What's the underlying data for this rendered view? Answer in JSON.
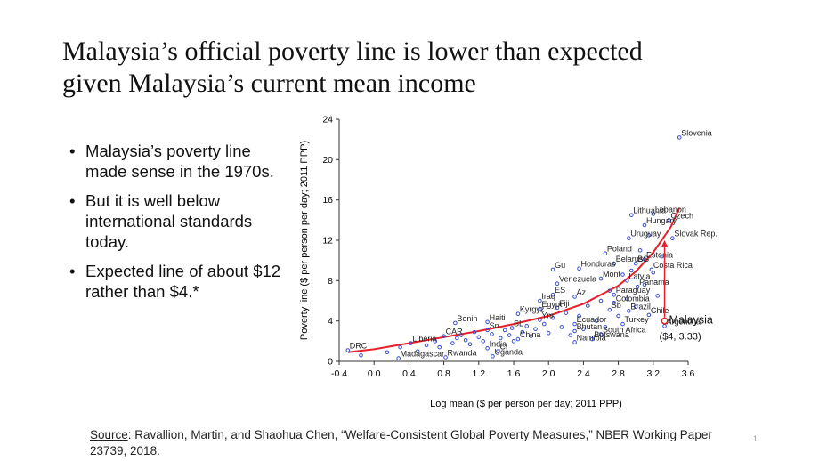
{
  "slide": {
    "title_line1": "Malaysia’s official poverty line is lower than expected",
    "title_line2": "given Malaysia’s current mean income",
    "bullets": [
      "Malaysia’s poverty line made sense in the 1970s.",
      "But it is well below international standards today.",
      "Expected line of about $12 rather than $4.*"
    ],
    "source_label": "Source",
    "source_text": ": Ravallion, Martin, and Shaohua Chen, “Welfare-Consistent Global Poverty Measures,” NBER Working Paper 23739, 2018.",
    "page_number": "1"
  },
  "chart_data": {
    "type": "scatter",
    "xlabel": "Log mean ($ per person per day; 2011 PPP)",
    "ylabel": "Poverty line ($ per person per day; 2011 PPP)",
    "xlim": [
      -0.4,
      3.6
    ],
    "ylim": [
      0,
      24
    ],
    "xticks": [
      -0.4,
      0.0,
      0.4,
      0.8,
      1.2,
      1.6,
      2.0,
      2.4,
      2.8,
      3.2,
      3.6
    ],
    "xtick_labels": [
      "-0.4",
      "0.0",
      "0.4",
      "0.8",
      "1.2",
      "1.6",
      "2.0",
      "2.4",
      "2.8",
      "3.2",
      "3.6"
    ],
    "yticks": [
      0,
      4,
      8,
      12,
      16,
      20,
      24
    ],
    "ytick_labels": [
      "0",
      "4",
      "8",
      "12",
      "16",
      "20",
      "24"
    ],
    "grid": false,
    "colors": {
      "points": "#3a4fcf",
      "fit": "#e8202a",
      "malaysia": "#e8202a"
    },
    "labelled_points": [
      {
        "name": "DRC",
        "x": -0.3,
        "y": 1.1
      },
      {
        "name": "Madagascar",
        "x": 0.28,
        "y": 0.3
      },
      {
        "name": "Rwanda",
        "x": 0.82,
        "y": 0.4
      },
      {
        "name": "Liberia",
        "x": 0.42,
        "y": 1.8
      },
      {
        "name": "CAR",
        "x": 0.8,
        "y": 2.5
      },
      {
        "name": "Benin",
        "x": 0.93,
        "y": 3.8
      },
      {
        "name": "Haiti",
        "x": 1.3,
        "y": 3.9
      },
      {
        "name": "Sn",
        "x": 1.3,
        "y": 3.1
      },
      {
        "name": "SL",
        "x": 1.58,
        "y": 3.3
      },
      {
        "name": "Uganda",
        "x": 1.36,
        "y": 0.5
      },
      {
        "name": "India",
        "x": 1.3,
        "y": 1.3
      },
      {
        "name": "CI",
        "x": 1.42,
        "y": 1.0
      },
      {
        "name": "China",
        "x": 1.65,
        "y": 2.2
      },
      {
        "name": "Kyrgyz",
        "x": 1.65,
        "y": 4.7
      },
      {
        "name": "Ym",
        "x": 1.9,
        "y": 4.1
      },
      {
        "name": "Egypt",
        "x": 1.9,
        "y": 5.2
      },
      {
        "name": "Fiji",
        "x": 2.1,
        "y": 5.3
      },
      {
        "name": "Iraq",
        "x": 1.9,
        "y": 6.0
      },
      {
        "name": "ES",
        "x": 2.05,
        "y": 6.6
      },
      {
        "name": "Az",
        "x": 2.3,
        "y": 6.4
      },
      {
        "name": "Venezuela",
        "x": 2.1,
        "y": 7.7
      },
      {
        "name": "Gu",
        "x": 2.05,
        "y": 9.1
      },
      {
        "name": "Honduras",
        "x": 2.35,
        "y": 9.2
      },
      {
        "name": "Mont",
        "x": 2.6,
        "y": 8.2
      },
      {
        "name": "Latvia",
        "x": 2.9,
        "y": 8.0
      },
      {
        "name": "Panama",
        "x": 3.02,
        "y": 7.4
      },
      {
        "name": "Paraguay",
        "x": 2.75,
        "y": 6.6
      },
      {
        "name": "Colombia",
        "x": 2.75,
        "y": 5.8
      },
      {
        "name": "Sb",
        "x": 2.7,
        "y": 5.1
      },
      {
        "name": "Brazil",
        "x": 2.92,
        "y": 5.0
      },
      {
        "name": "Chile",
        "x": 3.15,
        "y": 4.6
      },
      {
        "name": "Argentina",
        "x": 3.33,
        "y": 3.5
      },
      {
        "name": "Ecuador",
        "x": 2.3,
        "y": 3.7
      },
      {
        "name": "Turkey",
        "x": 2.85,
        "y": 3.7
      },
      {
        "name": "Bhutan",
        "x": 2.3,
        "y": 3.0
      },
      {
        "name": "South Africa",
        "x": 2.6,
        "y": 2.7
      },
      {
        "name": "Botswana",
        "x": 2.5,
        "y": 2.2
      },
      {
        "name": "Namibia",
        "x": 2.3,
        "y": 1.9
      },
      {
        "name": "Poland",
        "x": 2.65,
        "y": 10.7
      },
      {
        "name": "Belarus",
        "x": 2.75,
        "y": 9.7
      },
      {
        "name": "BG",
        "x": 3.0,
        "y": 9.7
      },
      {
        "name": "Estonia",
        "x": 3.1,
        "y": 10.1
      },
      {
        "name": "Costa Rica",
        "x": 3.18,
        "y": 9.1
      },
      {
        "name": "Uruguay",
        "x": 2.92,
        "y": 12.2
      },
      {
        "name": "Hungary",
        "x": 3.1,
        "y": 13.5
      },
      {
        "name": "Lithuania",
        "x": 2.95,
        "y": 14.5
      },
      {
        "name": "Lebanon",
        "x": 3.2,
        "y": 14.6
      },
      {
        "name": "Czech",
        "x": 3.38,
        "y": 14.0
      },
      {
        "name": "Slovak Rep.",
        "x": 3.42,
        "y": 12.2
      },
      {
        "name": "Slovenia",
        "x": 3.5,
        "y": 22.2
      }
    ],
    "other_points": [
      {
        "x": -0.15,
        "y": 0.6
      },
      {
        "x": 0.15,
        "y": 0.9
      },
      {
        "x": 0.3,
        "y": 1.4
      },
      {
        "x": 0.5,
        "y": 1.0
      },
      {
        "x": 0.6,
        "y": 1.6
      },
      {
        "x": 0.7,
        "y": 2.0
      },
      {
        "x": 0.75,
        "y": 1.4
      },
      {
        "x": 0.9,
        "y": 1.8
      },
      {
        "x": 0.95,
        "y": 2.3
      },
      {
        "x": 1.0,
        "y": 2.6
      },
      {
        "x": 1.05,
        "y": 2.1
      },
      {
        "x": 1.1,
        "y": 1.7
      },
      {
        "x": 1.15,
        "y": 2.9
      },
      {
        "x": 1.2,
        "y": 2.4
      },
      {
        "x": 1.25,
        "y": 2.0
      },
      {
        "x": 1.35,
        "y": 2.7
      },
      {
        "x": 1.45,
        "y": 2.3
      },
      {
        "x": 1.5,
        "y": 3.1
      },
      {
        "x": 1.55,
        "y": 2.6
      },
      {
        "x": 1.6,
        "y": 2.0
      },
      {
        "x": 1.7,
        "y": 2.9
      },
      {
        "x": 1.75,
        "y": 3.5
      },
      {
        "x": 1.8,
        "y": 2.5
      },
      {
        "x": 1.85,
        "y": 3.2
      },
      {
        "x": 1.95,
        "y": 3.7
      },
      {
        "x": 2.0,
        "y": 2.8
      },
      {
        "x": 2.05,
        "y": 4.3
      },
      {
        "x": 2.15,
        "y": 3.4
      },
      {
        "x": 2.2,
        "y": 4.8
      },
      {
        "x": 2.25,
        "y": 2.6
      },
      {
        "x": 2.35,
        "y": 4.5
      },
      {
        "x": 2.4,
        "y": 3.2
      },
      {
        "x": 2.45,
        "y": 5.5
      },
      {
        "x": 2.55,
        "y": 4.0
      },
      {
        "x": 2.6,
        "y": 6.0
      },
      {
        "x": 2.65,
        "y": 3.4
      },
      {
        "x": 2.7,
        "y": 7.0
      },
      {
        "x": 2.8,
        "y": 4.5
      },
      {
        "x": 2.85,
        "y": 8.6
      },
      {
        "x": 2.9,
        "y": 6.2
      },
      {
        "x": 2.95,
        "y": 9.0
      },
      {
        "x": 3.0,
        "y": 5.4
      },
      {
        "x": 3.05,
        "y": 11.0
      },
      {
        "x": 3.1,
        "y": 7.6
      },
      {
        "x": 3.15,
        "y": 12.5
      },
      {
        "x": 3.2,
        "y": 8.8
      },
      {
        "x": 3.25,
        "y": 6.5
      },
      {
        "x": 3.3,
        "y": 10.4
      }
    ],
    "fit_line": {
      "x": [
        -0.3,
        0.0,
        0.4,
        0.8,
        1.2,
        1.6,
        2.0,
        2.4,
        2.8,
        3.0,
        3.2,
        3.4,
        3.5
      ],
      "y": [
        0.9,
        1.2,
        1.8,
        2.4,
        3.0,
        3.7,
        4.5,
        5.7,
        7.5,
        8.9,
        10.8,
        13.3,
        15.2
      ]
    },
    "highlight": {
      "name": "Malaysia",
      "label": "($4, 3.33)",
      "x": 3.33,
      "y": 4.0,
      "expected_y": 12.0
    }
  }
}
